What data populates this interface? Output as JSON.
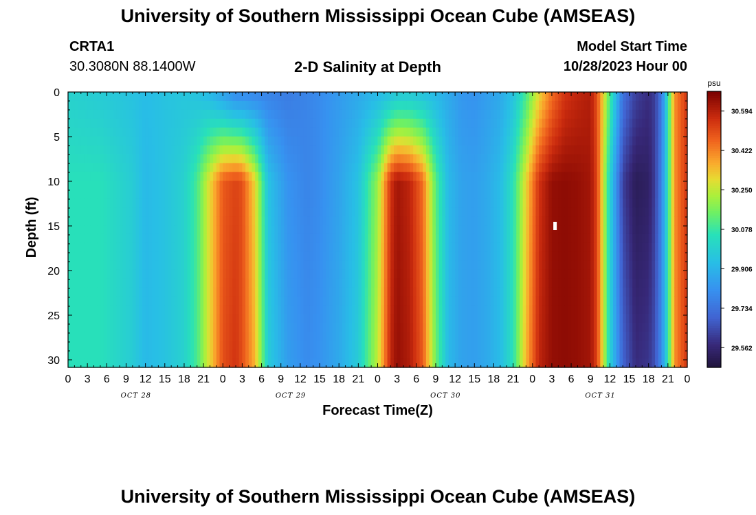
{
  "header": {
    "title": "University of Southern Mississippi Ocean Cube (AMSEAS)",
    "station": "CRTA1",
    "location": "30.3080N  88.1400W",
    "plot_title": "2-D Salinity at Depth",
    "model_start_label": "Model Start Time",
    "model_start_value": "10/28/2023 Hour 00"
  },
  "footer": {
    "title": "University of Southern Mississippi Ocean Cube (AMSEAS)"
  },
  "chart_data": {
    "type": "heatmap",
    "title": "2-D Salinity at Depth",
    "xlabel": "Forecast Time(Z)",
    "ylabel": "Depth (ft)",
    "x_tick_labels": [
      "0",
      "3",
      "6",
      "9",
      "12",
      "15",
      "18",
      "21",
      "0",
      "3",
      "6",
      "9",
      "12",
      "15",
      "18",
      "21",
      "0",
      "3",
      "6",
      "9",
      "12",
      "15",
      "18",
      "21",
      "0",
      "3",
      "6",
      "9",
      "12",
      "15",
      "18",
      "21",
      "0"
    ],
    "x_range_hours": [
      0,
      96
    ],
    "date_labels": [
      {
        "text": "OCT 28",
        "hour": 10
      },
      {
        "text": "OCT 29",
        "hour": 34
      },
      {
        "text": "OCT 30",
        "hour": 58
      },
      {
        "text": "OCT 31",
        "hour": 82
      }
    ],
    "y_ticks": [
      0,
      5,
      10,
      15,
      20,
      25,
      30
    ],
    "y_range": [
      0,
      31
    ],
    "colorbar": {
      "unit": "psu",
      "min": 29.476,
      "max": 30.68,
      "ticks": [
        "30.594",
        "30.422",
        "30.250",
        "30.078",
        "29.906",
        "29.734",
        "29.562"
      ]
    },
    "salinity_profile": {
      "description_units": "psu; hour -> [surface, mid, bottom] salinity",
      "hours": [
        0,
        5,
        10,
        12,
        15,
        18,
        20,
        22,
        24,
        26,
        27,
        29,
        31,
        34,
        37,
        39,
        42,
        45,
        48,
        50,
        51,
        53,
        55,
        57,
        59,
        61,
        63,
        65,
        67,
        69,
        71,
        73,
        75,
        77,
        79,
        81,
        82,
        84,
        86,
        88,
        90,
        91,
        92,
        93,
        94,
        96
      ],
      "surface": [
        30.0,
        29.98,
        29.95,
        29.93,
        29.95,
        29.96,
        29.95,
        29.92,
        29.86,
        29.8,
        29.8,
        29.79,
        29.78,
        29.76,
        29.78,
        29.8,
        29.84,
        29.88,
        29.92,
        29.95,
        29.97,
        29.97,
        29.95,
        29.92,
        29.88,
        29.83,
        29.82,
        29.85,
        29.88,
        29.95,
        30.1,
        30.3,
        30.45,
        30.55,
        30.58,
        30.6,
        30.5,
        30.1,
        29.73,
        29.62,
        29.58,
        29.62,
        29.75,
        30.05,
        30.4,
        30.55
      ],
      "mid": [
        30.05,
        30.05,
        29.98,
        29.92,
        29.95,
        30.0,
        30.1,
        30.3,
        30.48,
        30.52,
        30.5,
        30.3,
        29.95,
        29.82,
        29.78,
        29.8,
        29.86,
        29.95,
        30.2,
        30.55,
        30.62,
        30.58,
        30.45,
        30.12,
        29.92,
        29.86,
        29.85,
        29.88,
        29.93,
        30.05,
        30.3,
        30.55,
        30.64,
        30.65,
        30.64,
        30.62,
        30.52,
        30.0,
        29.62,
        29.52,
        29.54,
        29.62,
        29.78,
        30.05,
        30.4,
        30.55
      ],
      "bottom": [
        30.05,
        30.05,
        29.98,
        29.92,
        29.95,
        30.0,
        30.1,
        30.3,
        30.5,
        30.55,
        30.5,
        30.35,
        29.98,
        29.85,
        29.8,
        29.82,
        29.88,
        29.98,
        30.25,
        30.58,
        30.64,
        30.6,
        30.48,
        30.15,
        29.92,
        29.86,
        29.85,
        29.88,
        29.93,
        30.05,
        30.35,
        30.58,
        30.64,
        30.65,
        30.64,
        30.62,
        30.52,
        30.0,
        29.7,
        29.58,
        29.6,
        29.66,
        29.8,
        30.05,
        30.4,
        30.55
      ]
    },
    "marker": {
      "hour": 75.5,
      "depth": 15
    }
  }
}
